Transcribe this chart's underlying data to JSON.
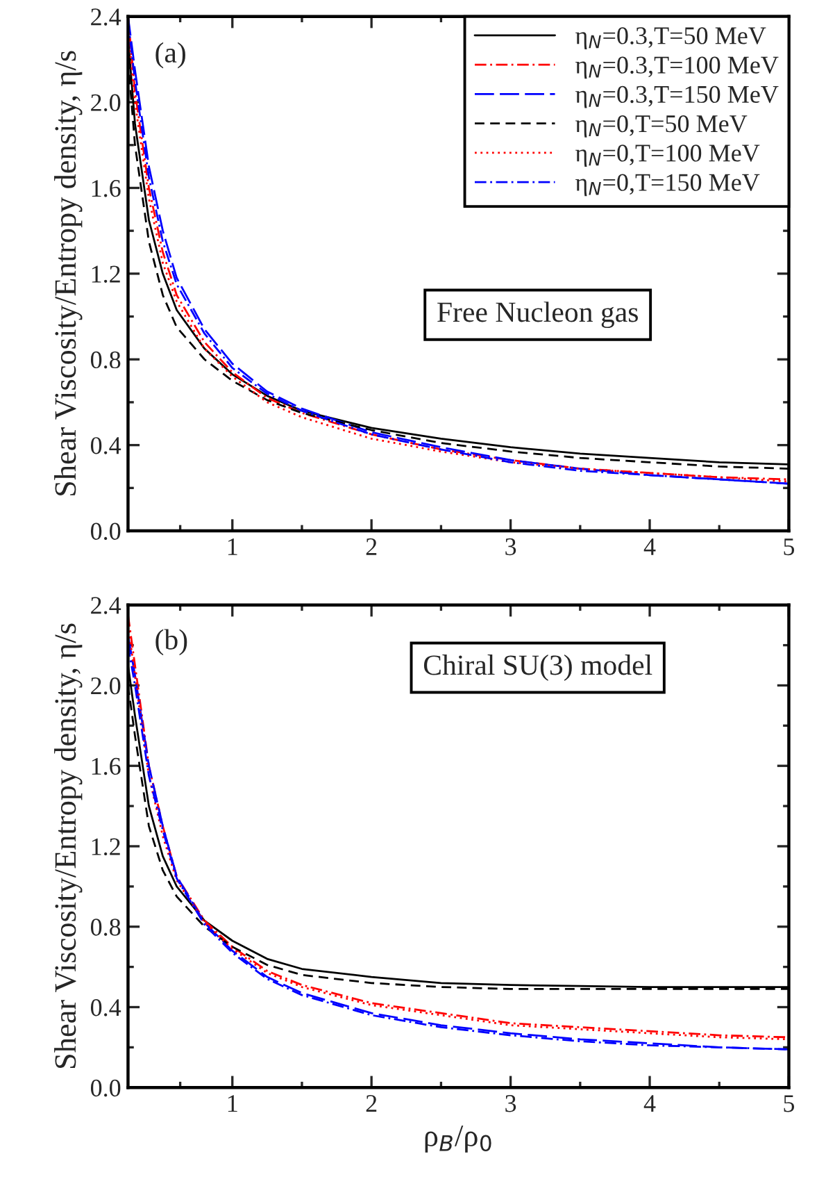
{
  "chart_data": [
    {
      "type": "line",
      "ylabel": "Shear Viscosity/Entropy density, η/s",
      "annotations": [
        "(a)",
        "Free Nucleon gas"
      ],
      "legend": "top right",
      "grid": false,
      "x": [
        0.25,
        0.3,
        0.4,
        0.5,
        0.6,
        0.8,
        1,
        1.25,
        1.5,
        2,
        2.5,
        3,
        3.5,
        4,
        4.5,
        5
      ],
      "xlim": [
        0.25,
        5
      ],
      "xticks": [
        1,
        2,
        3,
        4,
        5
      ],
      "ylim": [
        0,
        2.4
      ],
      "yticks": [
        {
          "value": 0,
          "label": "0.0"
        },
        {
          "value": 0.4,
          "label": "0.4"
        },
        {
          "value": 0.8,
          "label": "0.8"
        },
        {
          "value": 1.2,
          "label": "1.2"
        },
        {
          "value": 1.6,
          "label": "1.6"
        },
        {
          "value": 2.0,
          "label": "2.0"
        },
        {
          "value": 2.4,
          "label": "2.4"
        }
      ],
      "series": [
        {
          "name": "η$_{N}$=0.3,T=50 MeV",
          "color": "#000000",
          "line_style": "solid",
          "values": [
            2.3,
            1.9,
            1.45,
            1.2,
            1.03,
            0.85,
            0.73,
            0.63,
            0.56,
            0.48,
            0.43,
            0.39,
            0.36,
            0.34,
            0.32,
            0.31
          ]
        },
        {
          "name": "η$_{N}$=0.3,T=100 MeV",
          "color": "#ff0000",
          "line_style": "dashdot",
          "values": [
            2.4,
            2.05,
            1.6,
            1.3,
            1.1,
            0.88,
            0.74,
            0.62,
            0.55,
            0.45,
            0.38,
            0.33,
            0.29,
            0.27,
            0.25,
            0.24
          ]
        },
        {
          "name": "η$_{N}$=0.3,T=150 MeV",
          "color": "#0000ff",
          "line_style": "longdash",
          "values": [
            2.4,
            2.15,
            1.7,
            1.4,
            1.18,
            0.94,
            0.78,
            0.65,
            0.57,
            0.46,
            0.39,
            0.33,
            0.29,
            0.26,
            0.24,
            0.22
          ]
        },
        {
          "name": "η$_{N}$=0,T=50 MeV",
          "color": "#000000",
          "line_style": "dashed",
          "values": [
            2.2,
            1.8,
            1.35,
            1.1,
            0.95,
            0.8,
            0.7,
            0.61,
            0.55,
            0.47,
            0.41,
            0.37,
            0.34,
            0.32,
            0.3,
            0.29
          ]
        },
        {
          "name": "η$_{N}$=0,T=100 MeV",
          "color": "#ff0000",
          "line_style": "dotted",
          "values": [
            2.35,
            2.0,
            1.55,
            1.25,
            1.07,
            0.85,
            0.72,
            0.6,
            0.53,
            0.43,
            0.37,
            0.32,
            0.29,
            0.27,
            0.25,
            0.23
          ]
        },
        {
          "name": "η$_{N}$=0,T=150 MeV",
          "color": "#0000ff",
          "line_style": "dashdot",
          "values": [
            2.38,
            2.1,
            1.65,
            1.35,
            1.15,
            0.92,
            0.76,
            0.64,
            0.56,
            0.45,
            0.38,
            0.32,
            0.28,
            0.26,
            0.24,
            0.22
          ]
        }
      ]
    },
    {
      "type": "line",
      "xlabel": "ρ$_{B}$/ρ$_{0}$",
      "ylabel": "Shear Viscosity/Entropy density, η/s",
      "annotations": [
        "(b)",
        "Chiral SU(3) model"
      ],
      "grid": false,
      "x": [
        0.25,
        0.3,
        0.4,
        0.5,
        0.6,
        0.8,
        1,
        1.25,
        1.5,
        2,
        2.5,
        3,
        3.5,
        4,
        4.5,
        5
      ],
      "xlim": [
        0.25,
        5
      ],
      "xticks": [
        1,
        2,
        3,
        4,
        5
      ],
      "ylim": [
        0,
        2.4
      ],
      "yticks": [
        {
          "value": 0,
          "label": "0.0"
        },
        {
          "value": 0.4,
          "label": "0.4"
        },
        {
          "value": 0.8,
          "label": "0.8"
        },
        {
          "value": 1.2,
          "label": "1.2"
        },
        {
          "value": 1.6,
          "label": "1.6"
        },
        {
          "value": 2.0,
          "label": "2.0"
        },
        {
          "value": 2.4,
          "label": "2.4"
        }
      ],
      "series": [
        {
          "color": "#000000",
          "line_style": "solid",
          "values": [
            2.1,
            1.85,
            1.4,
            1.15,
            1.0,
            0.83,
            0.73,
            0.64,
            0.59,
            0.55,
            0.52,
            0.51,
            0.505,
            0.5,
            0.5,
            0.5
          ]
        },
        {
          "color": "#ff0000",
          "line_style": "dashdot",
          "values": [
            2.35,
            2.1,
            1.6,
            1.3,
            1.05,
            0.83,
            0.7,
            0.58,
            0.51,
            0.42,
            0.37,
            0.32,
            0.3,
            0.28,
            0.26,
            0.25
          ]
        },
        {
          "color": "#0000ff",
          "line_style": "longdash",
          "values": [
            2.25,
            2.05,
            1.6,
            1.3,
            1.05,
            0.82,
            0.68,
            0.55,
            0.47,
            0.37,
            0.31,
            0.27,
            0.24,
            0.22,
            0.2,
            0.19
          ]
        },
        {
          "color": "#000000",
          "line_style": "dashed",
          "values": [
            2.0,
            1.75,
            1.3,
            1.08,
            0.95,
            0.8,
            0.7,
            0.61,
            0.56,
            0.52,
            0.5,
            0.49,
            0.49,
            0.49,
            0.49,
            0.49
          ]
        },
        {
          "color": "#ff0000",
          "line_style": "dotted",
          "values": [
            2.3,
            2.05,
            1.55,
            1.25,
            1.03,
            0.82,
            0.69,
            0.57,
            0.5,
            0.41,
            0.36,
            0.31,
            0.29,
            0.27,
            0.25,
            0.24
          ]
        },
        {
          "color": "#0000ff",
          "line_style": "dashdot",
          "values": [
            2.2,
            2.0,
            1.55,
            1.28,
            1.04,
            0.81,
            0.67,
            0.54,
            0.46,
            0.36,
            0.3,
            0.26,
            0.23,
            0.21,
            0.2,
            0.19
          ]
        }
      ]
    }
  ]
}
